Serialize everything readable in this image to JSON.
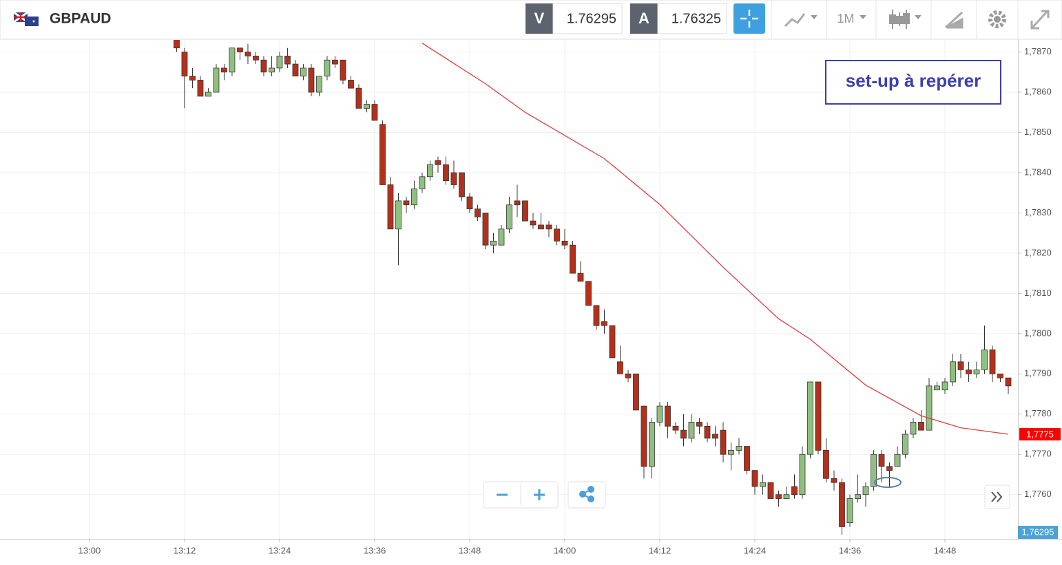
{
  "header": {
    "symbol": "GBPAUD",
    "bid_label": "V",
    "bid": "1.76295",
    "ask_label": "A",
    "ask": "1.76325",
    "timeframe": "1M"
  },
  "chart_data": {
    "type": "candlestick",
    "x": [
      "13:11",
      "13:12",
      "13:13",
      "13:14",
      "13:15",
      "13:16",
      "13:17",
      "13:18",
      "13:19",
      "13:20",
      "13:21",
      "13:22",
      "13:23",
      "13:24",
      "13:25",
      "13:26",
      "13:27",
      "13:28",
      "13:29",
      "13:30",
      "13:31",
      "13:32",
      "13:33",
      "13:34",
      "13:35",
      "13:36",
      "13:37",
      "13:38",
      "13:39",
      "13:40",
      "13:41",
      "13:42",
      "13:43",
      "13:44",
      "13:45",
      "13:46",
      "13:47",
      "13:48",
      "13:49",
      "13:50",
      "13:51",
      "13:52",
      "13:53",
      "13:54",
      "13:55",
      "13:56",
      "13:57",
      "13:58",
      "13:59",
      "14:00",
      "14:01",
      "14:02",
      "14:03",
      "14:04",
      "14:05",
      "14:06",
      "14:07",
      "14:08",
      "14:09",
      "14:10",
      "14:11",
      "14:12",
      "14:13",
      "14:14",
      "14:15",
      "14:16",
      "14:17",
      "14:18",
      "14:19",
      "14:20",
      "14:21",
      "14:22",
      "14:23",
      "14:24",
      "14:25",
      "14:26",
      "14:27",
      "14:28",
      "14:29",
      "14:30",
      "14:31",
      "14:32",
      "14:33",
      "14:34",
      "14:35",
      "14:36",
      "14:37",
      "14:38",
      "14:39",
      "14:40",
      "14:41",
      "14:42",
      "14:43",
      "14:44",
      "14:45",
      "14:46",
      "14:47",
      "14:48",
      "14:49",
      "14:50",
      "14:51",
      "14:52",
      "14:53",
      "14:54",
      "14:55",
      "14:56"
    ],
    "open": [
      1.7874,
      1.787,
      1.7864,
      1.7863,
      1.7859,
      1.786,
      1.7866,
      1.7865,
      1.7871,
      1.787,
      1.7869,
      1.7868,
      1.7865,
      1.7866,
      1.7869,
      1.7867,
      1.7864,
      1.7866,
      1.786,
      1.7864,
      1.7868,
      1.7868,
      1.7863,
      1.7861,
      1.7856,
      1.7857,
      1.7852,
      1.7837,
      1.7826,
      1.7833,
      1.7832,
      1.7836,
      1.7839,
      1.7843,
      1.7842,
      1.784,
      1.784,
      1.7834,
      1.7831,
      1.783,
      1.7822,
      1.7822,
      1.7826,
      1.7833,
      1.7833,
      1.7828,
      1.7827,
      1.7827,
      1.7826,
      1.7823,
      1.7822,
      1.7815,
      1.7813,
      1.7807,
      1.7803,
      1.7802,
      1.7793,
      1.779,
      1.779,
      1.7782,
      1.7767,
      1.7778,
      1.7782,
      1.7777,
      1.7776,
      1.7774,
      1.7778,
      1.7777,
      1.7775,
      1.7776,
      1.777,
      1.7771,
      1.7772,
      1.7766,
      1.7762,
      1.7763,
      1.776,
      1.7759,
      1.7762,
      1.776,
      1.777,
      1.7788,
      1.7771,
      1.7764,
      1.7763,
      1.7753,
      1.7759,
      1.776,
      1.7762,
      1.777,
      1.7767,
      1.7767,
      1.777,
      1.7775,
      1.7778,
      1.7776,
      1.7786,
      1.7786,
      1.7788,
      1.7793,
      1.7791,
      1.779,
      1.7791,
      1.7796,
      1.779,
      1.7789
    ],
    "high": [
      1.7876,
      1.7871,
      1.7866,
      1.7864,
      1.7861,
      1.7867,
      1.7867,
      1.7871,
      1.7871,
      1.7872,
      1.787,
      1.7869,
      1.7869,
      1.787,
      1.7871,
      1.7868,
      1.7867,
      1.7867,
      1.7864,
      1.7869,
      1.7869,
      1.7868,
      1.7864,
      1.7862,
      1.7858,
      1.7858,
      1.7853,
      1.7839,
      1.7835,
      1.7834,
      1.7838,
      1.784,
      1.7843,
      1.7844,
      1.7844,
      1.7843,
      1.784,
      1.7835,
      1.7832,
      1.783,
      1.7825,
      1.7827,
      1.7834,
      1.7837,
      1.7833,
      1.783,
      1.783,
      1.7828,
      1.7827,
      1.7826,
      1.7823,
      1.7818,
      1.7813,
      1.7807,
      1.7806,
      1.7802,
      1.7797,
      1.7791,
      1.779,
      1.7782,
      1.7779,
      1.7783,
      1.7783,
      1.7778,
      1.778,
      1.778,
      1.7779,
      1.7778,
      1.7777,
      1.7778,
      1.7773,
      1.7774,
      1.7772,
      1.7766,
      1.7765,
      1.7763,
      1.7761,
      1.7762,
      1.7765,
      1.7772,
      1.7788,
      1.7788,
      1.7774,
      1.7766,
      1.7764,
      1.776,
      1.7765,
      1.7763,
      1.7771,
      1.7771,
      1.7768,
      1.7772,
      1.7776,
      1.7779,
      1.7781,
      1.7789,
      1.7788,
      1.7789,
      1.7795,
      1.7795,
      1.7793,
      1.7793,
      1.7802,
      1.7797,
      1.779,
      1.7789
    ],
    "low": [
      1.787,
      1.7856,
      1.7861,
      1.7859,
      1.7859,
      1.786,
      1.7863,
      1.7864,
      1.7868,
      1.7867,
      1.7867,
      1.7864,
      1.7864,
      1.7865,
      1.7866,
      1.7864,
      1.7863,
      1.7859,
      1.7859,
      1.7863,
      1.7866,
      1.7862,
      1.7861,
      1.7856,
      1.7855,
      1.7853,
      1.7837,
      1.7826,
      1.7817,
      1.783,
      1.7831,
      1.7835,
      1.7838,
      1.784,
      1.7837,
      1.7836,
      1.7833,
      1.783,
      1.7828,
      1.7821,
      1.782,
      1.7822,
      1.7825,
      1.7829,
      1.7828,
      1.7826,
      1.7826,
      1.7824,
      1.7822,
      1.7821,
      1.7815,
      1.7813,
      1.7807,
      1.7801,
      1.78,
      1.7794,
      1.779,
      1.7788,
      1.7781,
      1.7764,
      1.7764,
      1.7777,
      1.7774,
      1.7775,
      1.7772,
      1.7773,
      1.7775,
      1.7773,
      1.7772,
      1.7768,
      1.7766,
      1.777,
      1.7765,
      1.776,
      1.776,
      1.7759,
      1.7757,
      1.7759,
      1.7759,
      1.7759,
      1.7769,
      1.777,
      1.7763,
      1.7761,
      1.775,
      1.7752,
      1.7758,
      1.7757,
      1.7761,
      1.7763,
      1.7762,
      1.7767,
      1.7769,
      1.7774,
      1.7776,
      1.7776,
      1.7786,
      1.7785,
      1.7787,
      1.7789,
      1.7788,
      1.7789,
      1.779,
      1.7788,
      1.7788,
      1.7785
    ],
    "close": [
      1.7871,
      1.7864,
      1.7863,
      1.7859,
      1.786,
      1.7866,
      1.7865,
      1.7871,
      1.787,
      1.7869,
      1.7868,
      1.7865,
      1.7866,
      1.7869,
      1.7867,
      1.7864,
      1.7866,
      1.786,
      1.7864,
      1.7868,
      1.7867,
      1.7863,
      1.7861,
      1.7856,
      1.7857,
      1.7853,
      1.7837,
      1.7826,
      1.7833,
      1.7832,
      1.7836,
      1.7839,
      1.7842,
      1.7842,
      1.7838,
      1.7837,
      1.7834,
      1.7831,
      1.7829,
      1.7822,
      1.7823,
      1.7826,
      1.7832,
      1.7832,
      1.7828,
      1.7827,
      1.7826,
      1.7826,
      1.7823,
      1.7822,
      1.7815,
      1.7813,
      1.7807,
      1.7802,
      1.7802,
      1.7794,
      1.779,
      1.7789,
      1.7781,
      1.7767,
      1.7778,
      1.7782,
      1.7777,
      1.7776,
      1.7774,
      1.7778,
      1.7777,
      1.7774,
      1.7774,
      1.777,
      1.7771,
      1.7772,
      1.7766,
      1.7762,
      1.7763,
      1.7759,
      1.7759,
      1.776,
      1.776,
      1.777,
      1.7788,
      1.7771,
      1.7764,
      1.7763,
      1.7752,
      1.7759,
      1.776,
      1.7762,
      1.777,
      1.7767,
      1.7766,
      1.777,
      1.7775,
      1.7778,
      1.7776,
      1.7787,
      1.7787,
      1.7788,
      1.7793,
      1.7791,
      1.779,
      1.7791,
      1.7796,
      1.779,
      1.7789,
      1.7787
    ],
    "up_color": "#8fc080",
    "down_color": "#b3311c",
    "ylim": [
      1.7749,
      1.7873
    ],
    "yticks": [
      {
        "value": 1.776,
        "label": "1,7760"
      },
      {
        "value": 1.777,
        "label": "1,7770"
      },
      {
        "value": 1.778,
        "label": "1,7780"
      },
      {
        "value": 1.779,
        "label": "1,7790"
      },
      {
        "value": 1.78,
        "label": "1,7800"
      },
      {
        "value": 1.781,
        "label": "1,7810"
      },
      {
        "value": 1.782,
        "label": "1,7820"
      },
      {
        "value": 1.783,
        "label": "1,7830"
      },
      {
        "value": 1.784,
        "label": "1,7840"
      },
      {
        "value": 1.785,
        "label": "1,7850"
      },
      {
        "value": 1.786,
        "label": "1,7860"
      },
      {
        "value": 1.787,
        "label": "1,7870"
      }
    ],
    "xlim": [
      "12:48:42",
      "14:57:13"
    ],
    "xticks": [
      "13:00",
      "13:12",
      "13:24",
      "13:36",
      "13:48",
      "14:00",
      "14:12",
      "14:24",
      "14:36",
      "14:48"
    ],
    "grid": true,
    "ma": {
      "color": "#e03c3c",
      "x": [
        "13:42",
        "13:50",
        "13:55",
        "14:05",
        "14:12",
        "14:20",
        "14:27",
        "14:31",
        "14:38",
        "14:45",
        "14:50",
        "14:56"
      ],
      "values": [
        1.78722,
        1.78621,
        1.7855,
        1.78435,
        1.78321,
        1.78165,
        1.78037,
        1.77986,
        1.77872,
        1.77796,
        1.77766,
        1.7775
      ]
    },
    "ma_label": {
      "value": 1.7775,
      "label": "1,7775",
      "color": "#ff0000"
    },
    "price_tag": "1,76295",
    "annotation": "set-up à repérer"
  }
}
